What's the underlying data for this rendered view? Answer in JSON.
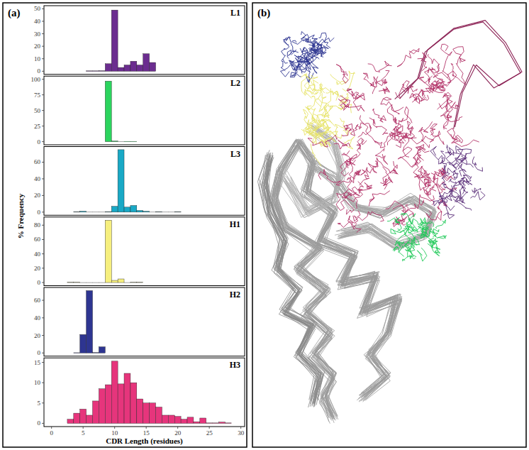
{
  "panel_labels": [
    "(a)",
    "(b)"
  ],
  "ylabel": "% Frequency",
  "xlabel": "CDR Length (residues)",
  "chart_data": [
    {
      "type": "histogram",
      "title": "L1",
      "color": "#6b2d8f",
      "bins": [
        5.5,
        6.5,
        7.5,
        8.5,
        9.5,
        10.5,
        11.5,
        12.5,
        13.5,
        14.5,
        15.5,
        16.5
      ],
      "values": [
        0.3,
        0.3,
        0.4,
        6,
        49,
        3,
        5,
        8,
        5,
        14,
        7
      ],
      "xlim": [
        -1.2,
        30.6
      ],
      "ylim": [
        -2.5,
        52.5
      ],
      "yticks": [
        0,
        10,
        20,
        30,
        40,
        50
      ],
      "tick_labels": "y"
    },
    {
      "type": "histogram",
      "title": "L2",
      "color": "#2bd45e",
      "bins": [
        8.5,
        9.5,
        10.5,
        11.5,
        12.5,
        13.5
      ],
      "values": [
        97,
        1,
        0,
        0.5,
        0.5
      ],
      "xlim": [
        -1.2,
        30.6
      ],
      "ylim": [
        -5,
        105
      ],
      "yticks": [
        0,
        25,
        50,
        75,
        100
      ],
      "tick_labels": "y"
    },
    {
      "type": "histogram",
      "title": "L3",
      "color": "#19a9c6",
      "bins": [
        3.5,
        4.5,
        5.5,
        6.5,
        7.5,
        8.5,
        9.5,
        10.5,
        11.5,
        12.5,
        13.5,
        14.5,
        15.5,
        16.5,
        17.5,
        18.5,
        19.5,
        20.5
      ],
      "values": [
        0.3,
        1,
        0,
        0,
        0,
        0.5,
        7,
        75,
        6,
        8,
        2,
        1,
        0,
        0.3,
        0,
        0,
        0.3
      ],
      "xlim": [
        -1.2,
        30.6
      ],
      "ylim": [
        -3.75,
        78.75
      ],
      "yticks": [
        0,
        20,
        40,
        60
      ],
      "tick_labels": "y"
    },
    {
      "type": "histogram",
      "title": "H1",
      "color": "#f6ef7e",
      "bins": [
        2.5,
        3.5,
        4.5,
        5.5,
        6.5,
        7.5,
        8.5,
        9.5,
        10.5,
        11.5,
        12.5,
        13.5,
        14.5
      ],
      "values": [
        0.3,
        0.3,
        0,
        0,
        0,
        0,
        87,
        3,
        5,
        0,
        0.3,
        0.3
      ],
      "xlim": [
        -1.2,
        30.6
      ],
      "ylim": [
        -4.4,
        91.4
      ],
      "yticks": [
        0,
        20,
        40,
        60,
        80
      ],
      "tick_labels": "y"
    },
    {
      "type": "histogram",
      "title": "H2",
      "color": "#2e3591",
      "bins": [
        3.5,
        4.5,
        5.5,
        6.5,
        7.5,
        8.5
      ],
      "values": [
        0.3,
        21,
        71,
        0.5,
        7
      ],
      "xlim": [
        -1.2,
        30.6
      ],
      "ylim": [
        -3.6,
        74.6
      ],
      "yticks": [
        0,
        20,
        40,
        60
      ],
      "tick_labels": "y"
    },
    {
      "type": "histogram",
      "title": "H3",
      "color": "#e6357c",
      "bins": [
        2.5,
        3.5,
        4.5,
        5.5,
        6.5,
        7.5,
        8.5,
        9.5,
        10.5,
        11.5,
        12.5,
        13.5,
        14.5,
        15.5,
        16.5,
        17.5,
        18.5,
        19.5,
        20.5,
        21.5,
        22.5,
        23.5,
        24.5,
        25.5,
        26.5,
        27.5,
        28.5
      ],
      "values": [
        1,
        2.5,
        3.5,
        2,
        5.5,
        8.5,
        9.5,
        15.3,
        9.7,
        12.3,
        10,
        6,
        5,
        5,
        4,
        2,
        2,
        1.7,
        1,
        1.5,
        0.4,
        1.3,
        0.1,
        0.1,
        0.3,
        0.1
      ],
      "xlim": [
        -1.2,
        30.6
      ],
      "xticks": [
        0,
        5,
        10,
        15,
        20,
        25,
        30
      ],
      "ylim": [
        -0.8,
        16.1
      ],
      "yticks": [
        0,
        5,
        10,
        15
      ]
    }
  ]
}
